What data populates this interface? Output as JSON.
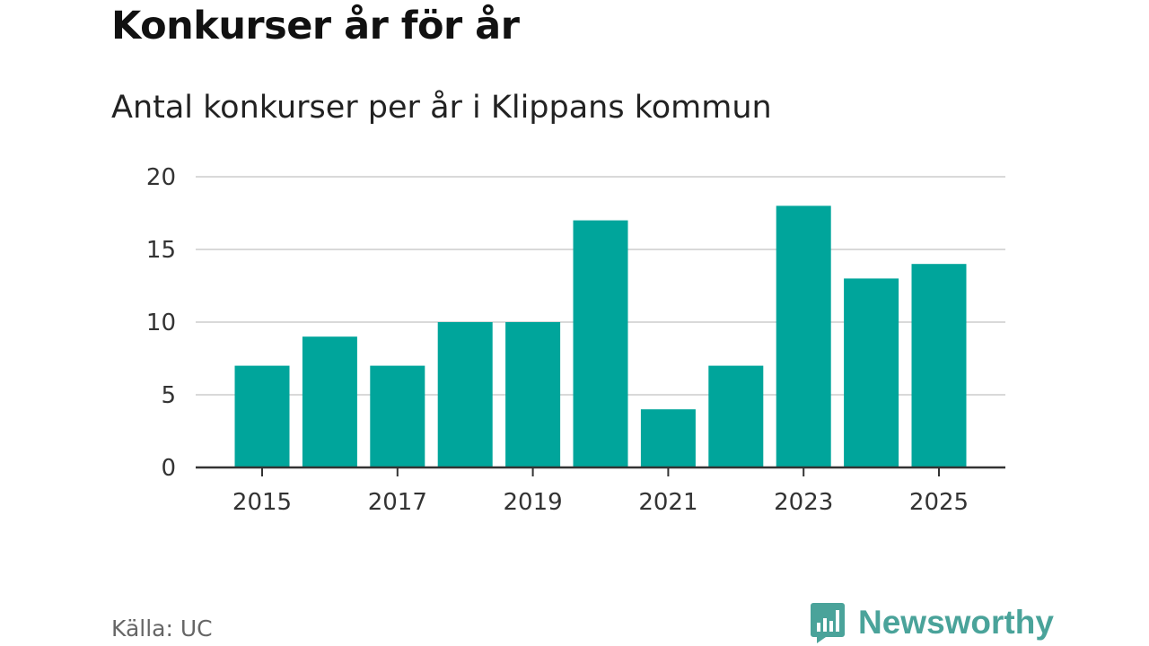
{
  "chart_data": {
    "type": "bar",
    "title": "Konkurser år för år",
    "subtitle": "Antal konkurser per år i Klippans kommun",
    "categories": [
      "2015",
      "2016",
      "2017",
      "2018",
      "2019",
      "2020",
      "2021",
      "2022",
      "2023",
      "2024",
      "2025"
    ],
    "values": [
      7,
      9,
      7,
      10,
      10,
      17,
      4,
      7,
      18,
      13,
      14
    ],
    "xticks": [
      "2015",
      "2017",
      "2019",
      "2021",
      "2023",
      "2025"
    ],
    "yticks": [
      0,
      5,
      10,
      15,
      20
    ],
    "ylim": [
      0,
      20
    ],
    "xlabel": "",
    "ylabel": "",
    "grid": true,
    "bar_color": "#00a59b"
  },
  "footer": {
    "source": "Källa: UC",
    "brand": "Newsworthy"
  },
  "colors": {
    "brand": "#4aa39a",
    "grid": "#d9d9d9",
    "axis": "#333333"
  }
}
